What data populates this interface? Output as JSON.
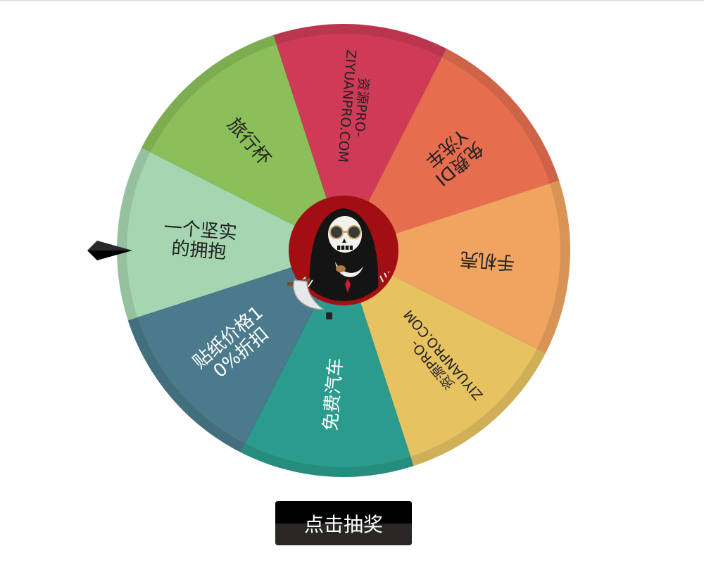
{
  "wheel": {
    "prizes": [
      {
        "label": "一个坚实的拥抱",
        "color": "#a5d6b1"
      },
      {
        "label": "旅行杯",
        "color": "#8bbf5a"
      },
      {
        "label": "资源PRO-ZIYUANPRO.COM",
        "color": "#cf3b57"
      },
      {
        "label": "免费DIY洗车",
        "color": "#e66e4f"
      },
      {
        "label": "手机壳",
        "color": "#f0a460"
      },
      {
        "label": "资源PRO-ZIYUANPRO.COM",
        "color": "#e6c261"
      },
      {
        "label": "免费汽车",
        "color": "#2a9b8c"
      },
      {
        "label": "贴纸价格10%折扣",
        "color": "#4a7a8c"
      }
    ],
    "center": {
      "icon": "grim-reaper-icon",
      "ring_color": "#a30e12"
    },
    "pointer": {
      "icon": "pointer-arrow-icon",
      "color": "#111111"
    }
  },
  "spin_button": {
    "label": "点击抽奖"
  }
}
